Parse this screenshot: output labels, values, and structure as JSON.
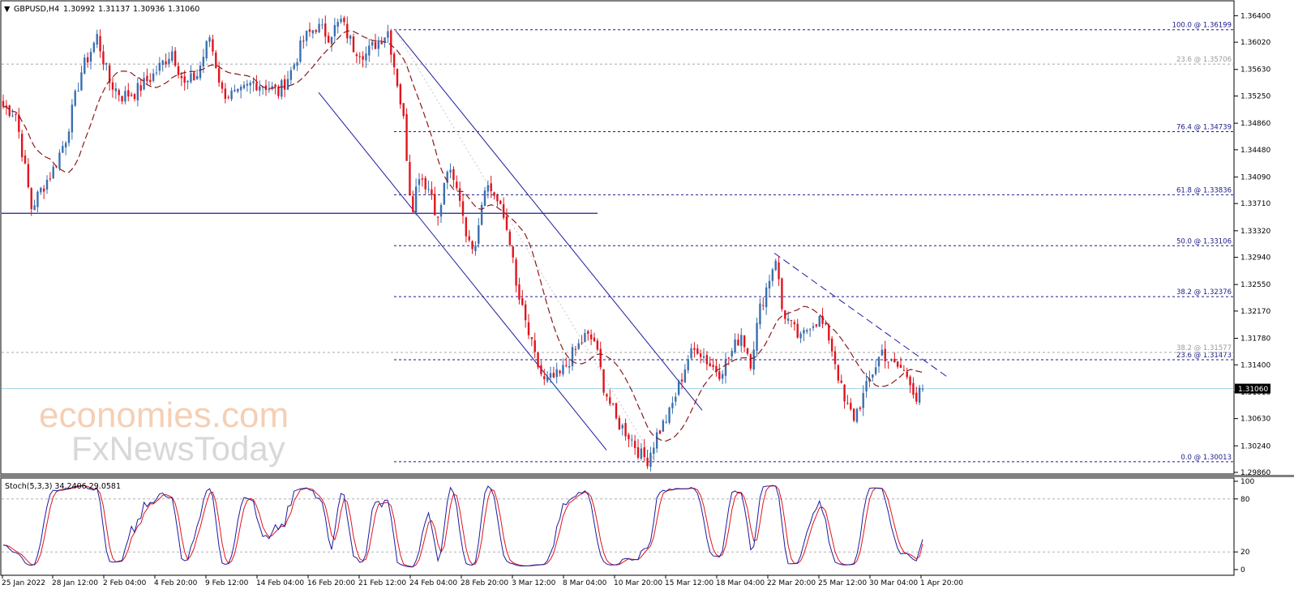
{
  "header": {
    "symbol": "GBPUSD,H4",
    "open": "1.30992",
    "high": "1.31137",
    "low": "1.30936",
    "close": "1.31060"
  },
  "watermark": {
    "line1": "economies.com",
    "line2": "FxNewsToday"
  },
  "colors": {
    "bull": "#3a6fb0",
    "bear": "#e0141e",
    "ma": "#8b1a1a",
    "fib": "#1a1a8c",
    "channel": "#1c1c9e",
    "stoch_main": "#1c1c9e",
    "stoch_signal": "#e0141e",
    "current": "#9fd3e6"
  },
  "chart_data": {
    "type": "candlestick",
    "ylim": [
      1.2986,
      1.3659
    ],
    "price_ticks": [
      "1.36400",
      "1.36020",
      "1.35630",
      "1.35250",
      "1.34860",
      "1.34480",
      "1.34090",
      "1.33710",
      "1.33320",
      "1.32940",
      "1.32550",
      "1.32170",
      "1.31780",
      "1.31400",
      "1.31010",
      "1.30630",
      "1.30240",
      "1.29860"
    ],
    "price_tick_values": [
      1.364,
      1.3602,
      1.3563,
      1.3525,
      1.3486,
      1.3448,
      1.3409,
      1.3371,
      1.3332,
      1.3294,
      1.3255,
      1.3217,
      1.3178,
      1.314,
      1.3101,
      1.3063,
      1.3024,
      1.2986
    ],
    "current_price_label": "1.31060",
    "current_price": 1.3106,
    "x_labels": [
      "25 Jan 2022",
      "28 Jan 12:00",
      "2 Feb 04:00",
      "4 Feb 20:00",
      "9 Feb 12:00",
      "14 Feb 04:00",
      "16 Feb 20:00",
      "21 Feb 12:00",
      "24 Feb 04:00",
      "28 Feb 20:00",
      "3 Mar 12:00",
      "8 Mar 04:00",
      "10 Mar 20:00",
      "15 Mar 12:00",
      "18 Mar 04:00",
      "22 Mar 20:00",
      "25 Mar 12:00",
      "30 Mar 04:00",
      "1 Apr 20:00"
    ],
    "fib_levels": [
      {
        "label": "100.0 @ 1.36199",
        "price": 1.36199
      },
      {
        "label": "76.4 @ 1.34739",
        "price": 1.34739
      },
      {
        "label": "61.8 @ 1.33836",
        "price": 1.33836
      },
      {
        "label": "50.0 @ 1.33106",
        "price": 1.33106
      },
      {
        "label": "38.2 @ 1.32376",
        "price": 1.32376
      },
      {
        "label": "23.6 @ 1.31473",
        "price": 1.31473
      },
      {
        "label": "0.0 @ 1.30013",
        "price": 1.30013
      }
    ],
    "grey_levels": [
      {
        "label": "23.6 @ 1.35706",
        "price": 1.35706
      },
      {
        "label": "38.2 @ 1.31577",
        "price": 1.31577
      }
    ],
    "support_line": 1.3357,
    "anchors": [
      {
        "i": 0,
        "p": 1.351
      },
      {
        "i": 4,
        "p": 1.35
      },
      {
        "i": 7,
        "p": 1.342
      },
      {
        "i": 9,
        "p": 1.3365
      },
      {
        "i": 12,
        "p": 1.339
      },
      {
        "i": 16,
        "p": 1.342
      },
      {
        "i": 20,
        "p": 1.3465
      },
      {
        "i": 25,
        "p": 1.356
      },
      {
        "i": 30,
        "p": 1.361
      },
      {
        "i": 34,
        "p": 1.3545
      },
      {
        "i": 38,
        "p": 1.3525
      },
      {
        "i": 42,
        "p": 1.353
      },
      {
        "i": 48,
        "p": 1.3555
      },
      {
        "i": 54,
        "p": 1.359
      },
      {
        "i": 58,
        "p": 1.354
      },
      {
        "i": 62,
        "p": 1.3555
      },
      {
        "i": 66,
        "p": 1.361
      },
      {
        "i": 70,
        "p": 1.353
      },
      {
        "i": 75,
        "p": 1.3525
      },
      {
        "i": 80,
        "p": 1.3545
      },
      {
        "i": 84,
        "p": 1.354
      },
      {
        "i": 88,
        "p": 1.353
      },
      {
        "i": 92,
        "p": 1.356
      },
      {
        "i": 96,
        "p": 1.3605
      },
      {
        "i": 100,
        "p": 1.3625
      },
      {
        "i": 104,
        "p": 1.3612
      },
      {
        "i": 108,
        "p": 1.3632
      },
      {
        "i": 112,
        "p": 1.3595
      },
      {
        "i": 116,
        "p": 1.3585
      },
      {
        "i": 120,
        "p": 1.3605
      },
      {
        "i": 123,
        "p": 1.3618
      },
      {
        "i": 126,
        "p": 1.3545
      },
      {
        "i": 128,
        "p": 1.349
      },
      {
        "i": 130,
        "p": 1.339
      },
      {
        "i": 131,
        "p": 1.337
      },
      {
        "i": 133,
        "p": 1.3415
      },
      {
        "i": 137,
        "p": 1.3385
      },
      {
        "i": 139,
        "p": 1.3345
      },
      {
        "i": 142,
        "p": 1.342
      },
      {
        "i": 146,
        "p": 1.338
      },
      {
        "i": 149,
        "p": 1.331
      },
      {
        "i": 151,
        "p": 1.332
      },
      {
        "i": 154,
        "p": 1.34
      },
      {
        "i": 157,
        "p": 1.3385
      },
      {
        "i": 160,
        "p": 1.335
      },
      {
        "i": 162,
        "p": 1.332
      },
      {
        "i": 164,
        "p": 1.325
      },
      {
        "i": 167,
        "p": 1.32
      },
      {
        "i": 170,
        "p": 1.315
      },
      {
        "i": 173,
        "p": 1.3115
      },
      {
        "i": 178,
        "p": 1.3125
      },
      {
        "i": 182,
        "p": 1.3155
      },
      {
        "i": 186,
        "p": 1.318
      },
      {
        "i": 189,
        "p": 1.3175
      },
      {
        "i": 192,
        "p": 1.311
      },
      {
        "i": 196,
        "p": 1.306
      },
      {
        "i": 200,
        "p": 1.304
      },
      {
        "i": 204,
        "p": 1.301
      },
      {
        "i": 206,
        "p": 1.3005
      },
      {
        "i": 209,
        "p": 1.304
      },
      {
        "i": 213,
        "p": 1.307
      },
      {
        "i": 216,
        "p": 1.311
      },
      {
        "i": 219,
        "p": 1.315
      },
      {
        "i": 222,
        "p": 1.3165
      },
      {
        "i": 226,
        "p": 1.314
      },
      {
        "i": 229,
        "p": 1.313
      },
      {
        "i": 232,
        "p": 1.315
      },
      {
        "i": 236,
        "p": 1.3185
      },
      {
        "i": 239,
        "p": 1.3145
      },
      {
        "i": 242,
        "p": 1.322
      },
      {
        "i": 245,
        "p": 1.3265
      },
      {
        "i": 247,
        "p": 1.3295
      },
      {
        "i": 249,
        "p": 1.322
      },
      {
        "i": 252,
        "p": 1.3195
      },
      {
        "i": 255,
        "p": 1.3175
      },
      {
        "i": 258,
        "p": 1.32
      },
      {
        "i": 261,
        "p": 1.3205
      },
      {
        "i": 264,
        "p": 1.318
      },
      {
        "i": 266,
        "p": 1.3145
      },
      {
        "i": 269,
        "p": 1.3085
      },
      {
        "i": 272,
        "p": 1.3065
      },
      {
        "i": 275,
        "p": 1.3095
      },
      {
        "i": 278,
        "p": 1.313
      },
      {
        "i": 281,
        "p": 1.316
      },
      {
        "i": 284,
        "p": 1.314
      },
      {
        "i": 287,
        "p": 1.3135
      },
      {
        "i": 290,
        "p": 1.312
      },
      {
        "i": 292,
        "p": 1.309
      },
      {
        "i": 294,
        "p": 1.3106
      }
    ],
    "candle_count": 295,
    "stochastic": {
      "label": "Stoch(5,3,3) 34.2406 29.0581",
      "main": 34.2406,
      "signal": 29.0581,
      "levels": [
        20,
        80
      ],
      "ticks": [
        "100",
        "80",
        "20",
        "0"
      ]
    }
  }
}
